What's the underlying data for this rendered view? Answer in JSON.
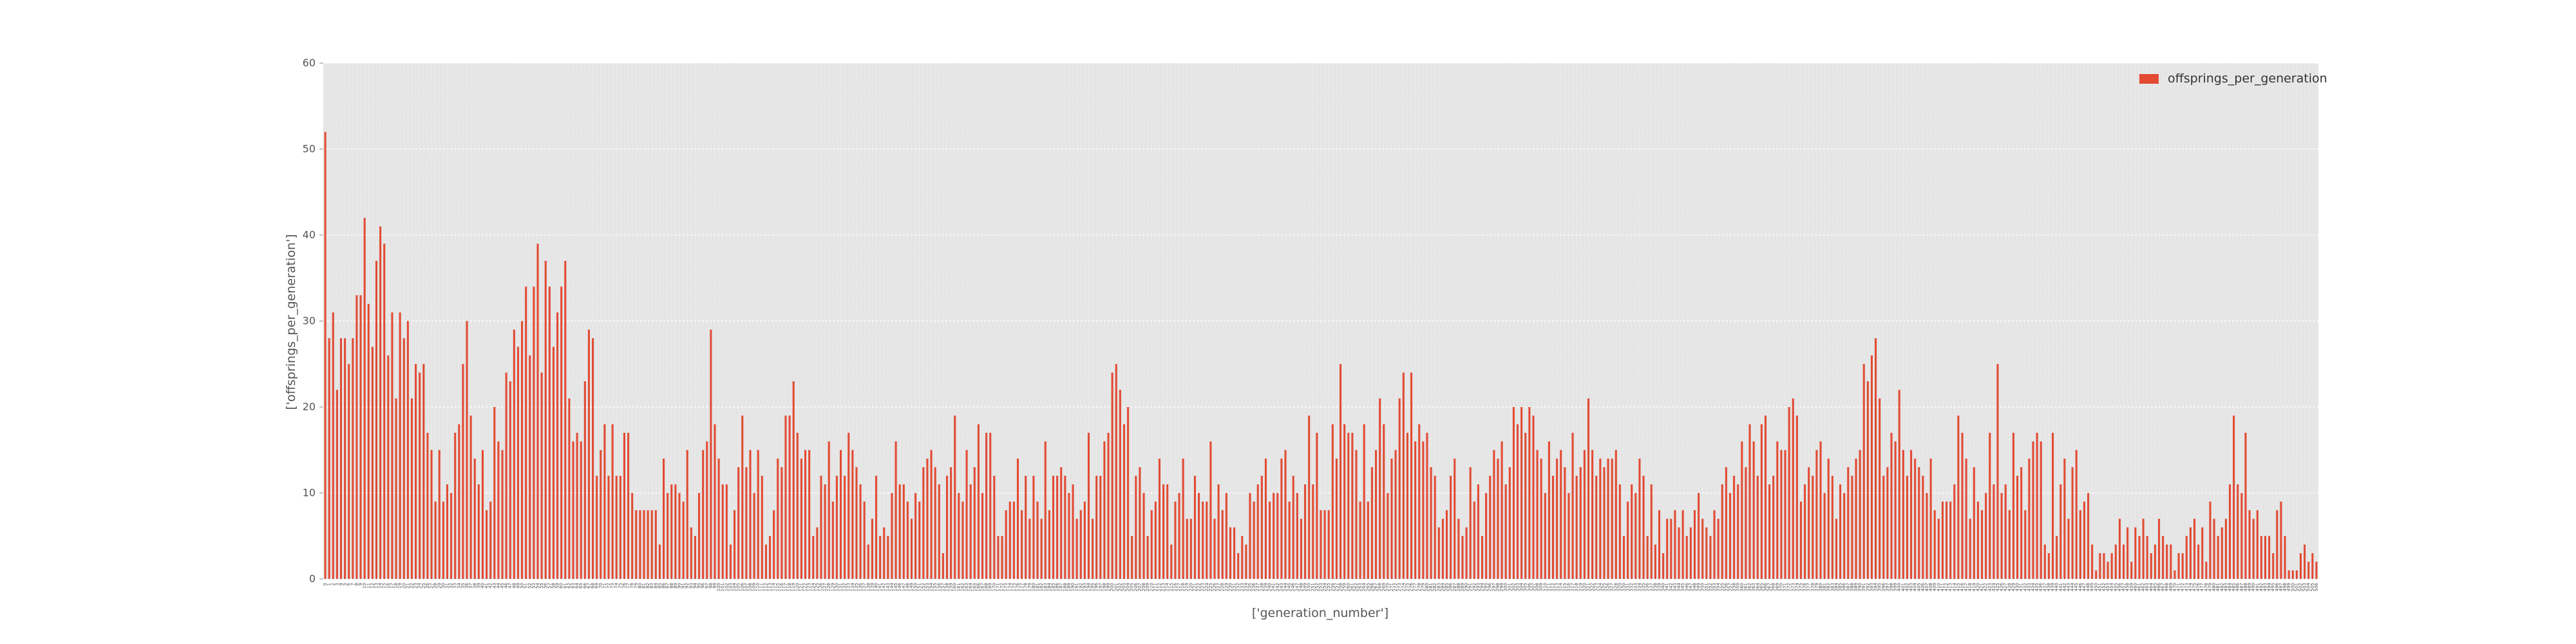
{
  "chart_data": {
    "type": "bar",
    "xlabel": "['generation_number']",
    "ylabel": "['offsprings_per_generation']",
    "ylim": [
      0,
      60
    ],
    "yticks": [
      0,
      10,
      20,
      30,
      40,
      50,
      60
    ],
    "ytick_labels": [
      "0",
      "10",
      "20",
      "30",
      "40",
      "50",
      "60"
    ],
    "grid": true,
    "legend_position": "top-right",
    "series": [
      {
        "name": "offsprings_per_generation",
        "color": "#e24a33",
        "values": [
          52,
          28,
          31,
          22,
          28,
          28,
          25,
          28,
          33,
          33,
          42,
          32,
          27,
          37,
          41,
          39,
          26,
          31,
          21,
          31,
          28,
          30,
          21,
          25,
          24,
          25,
          17,
          15,
          9,
          15,
          9,
          11,
          10,
          17,
          18,
          25,
          30,
          19,
          14,
          11,
          15,
          8,
          9,
          20,
          16,
          15,
          24,
          23,
          29,
          27,
          30,
          34,
          26,
          34,
          39,
          24,
          37,
          34,
          27,
          31,
          34,
          37,
          21,
          16,
          17,
          16,
          23,
          29,
          28,
          12,
          15,
          18,
          12,
          18,
          12,
          12,
          17,
          17,
          10,
          8,
          8,
          8,
          8,
          8,
          8,
          4,
          14,
          10,
          11,
          11,
          10,
          9,
          15,
          6,
          5,
          10,
          15,
          16,
          29,
          18,
          14,
          11,
          11,
          4,
          8,
          13,
          19,
          13,
          15,
          10,
          15,
          12,
          4,
          5,
          8,
          14,
          13,
          19,
          19,
          23,
          17,
          14,
          15,
          15,
          5,
          6,
          12,
          11,
          16,
          9,
          12,
          15,
          12,
          17,
          15,
          13,
          11,
          9,
          4,
          7,
          12,
          5,
          6,
          5,
          10,
          16,
          11,
          11,
          9,
          7,
          10,
          9,
          13,
          14,
          15,
          13,
          11,
          3,
          12,
          13,
          19,
          10,
          9,
          15,
          11,
          13,
          18,
          10,
          17,
          17,
          12,
          5,
          5,
          8,
          9,
          9,
          14,
          8,
          12,
          7,
          12,
          9,
          7,
          16,
          8,
          12,
          12,
          13,
          12,
          10,
          11,
          7,
          8,
          9,
          17,
          7,
          12,
          12,
          16,
          17,
          24,
          25,
          22,
          18,
          20,
          5,
          12,
          13,
          10,
          5,
          8,
          9,
          14,
          11,
          11,
          4,
          9,
          10,
          14,
          7,
          7,
          12,
          10,
          9,
          9,
          16,
          7,
          11,
          8,
          10,
          6,
          6,
          3,
          5,
          4,
          10,
          9,
          11,
          12,
          14,
          9,
          10,
          10,
          14,
          15,
          9,
          12,
          10,
          7,
          11,
          19,
          11,
          17,
          8,
          8,
          8,
          18,
          14,
          25,
          18,
          17,
          17,
          15,
          9,
          18,
          9,
          13,
          15,
          21,
          18,
          10,
          14,
          15,
          21,
          24,
          17,
          24,
          16,
          18,
          16,
          17,
          13,
          12,
          6,
          7,
          8,
          12,
          14,
          7,
          5,
          6,
          13,
          9,
          11,
          5,
          10,
          12,
          15,
          14,
          16,
          11,
          13,
          20,
          18,
          20,
          17,
          20,
          19,
          15,
          14,
          10,
          16,
          12,
          14,
          15,
          13,
          10,
          17,
          12,
          13,
          15,
          21,
          15,
          12,
          14,
          13,
          14,
          14,
          15,
          11,
          5,
          9,
          11,
          10,
          14,
          12,
          5,
          11,
          4,
          8,
          3,
          7,
          7,
          8,
          6,
          8,
          5,
          6,
          8,
          10,
          7,
          6,
          5,
          8,
          7,
          11,
          13,
          10,
          12,
          11,
          16,
          13,
          18,
          16,
          12,
          18,
          19,
          11,
          12,
          16,
          15,
          15,
          20,
          21,
          19,
          9,
          11,
          13,
          12,
          15,
          16,
          10,
          14,
          12,
          7,
          11,
          10,
          13,
          12,
          14,
          15,
          25,
          23,
          26,
          28,
          21,
          12,
          13,
          17,
          16,
          22,
          15,
          12,
          15,
          14,
          13,
          12,
          10,
          14,
          8,
          7,
          9,
          9,
          9,
          11,
          19,
          17,
          14,
          7,
          13,
          9,
          8,
          10,
          17,
          11,
          25,
          10,
          11,
          8,
          17,
          12,
          13,
          8,
          14,
          16,
          17,
          16,
          4,
          3,
          17,
          5,
          11,
          14,
          7,
          13,
          15,
          8,
          9,
          10,
          4,
          1,
          3,
          3,
          2,
          3,
          4,
          7,
          4,
          6,
          2,
          6,
          5,
          7,
          5,
          3,
          4,
          7,
          5,
          4,
          4,
          1,
          3,
          3,
          5,
          6,
          7,
          4,
          6,
          2,
          9,
          7,
          5,
          6,
          7,
          11,
          19,
          11,
          10,
          17,
          8,
          7,
          8,
          5,
          5,
          5,
          3,
          8,
          9,
          5,
          1,
          1,
          1,
          3,
          4,
          2,
          3,
          2
        ]
      }
    ]
  }
}
